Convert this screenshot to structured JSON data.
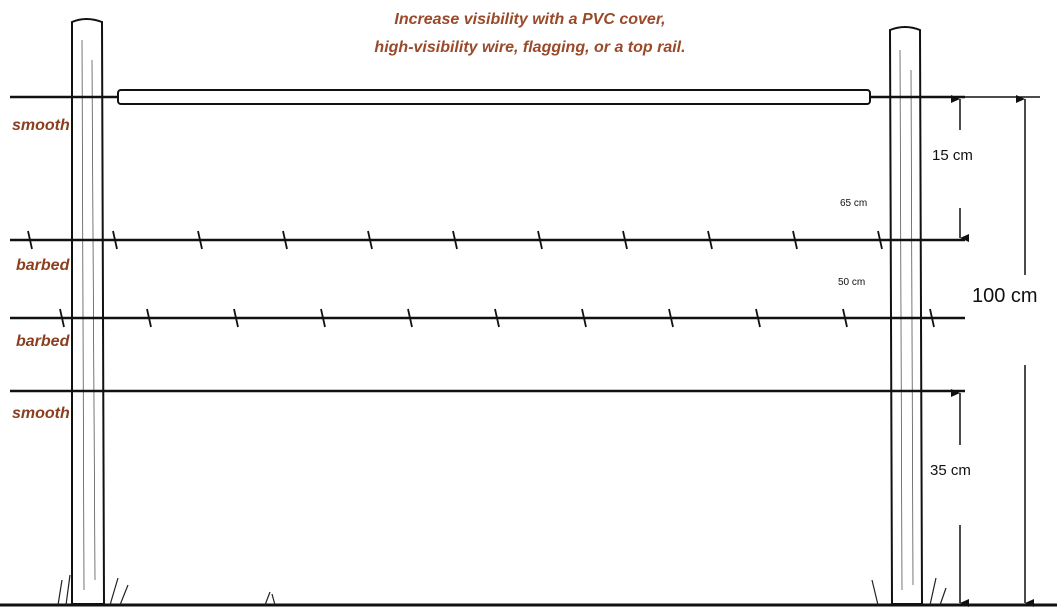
{
  "caption": {
    "lines": [
      "Increase visibility with a PVC cover,",
      "high-visibility wire, flagging, or a top rail."
    ]
  },
  "wires": [
    {
      "label": "smooth"
    },
    {
      "label": "barbed"
    },
    {
      "label": "barbed"
    },
    {
      "label": "smooth"
    }
  ],
  "measurements": [
    {
      "label": "15 cm"
    },
    {
      "label": "65 cm"
    },
    {
      "label": "50 cm"
    },
    {
      "label": "35 cm"
    },
    {
      "label": "100 cm"
    }
  ]
}
